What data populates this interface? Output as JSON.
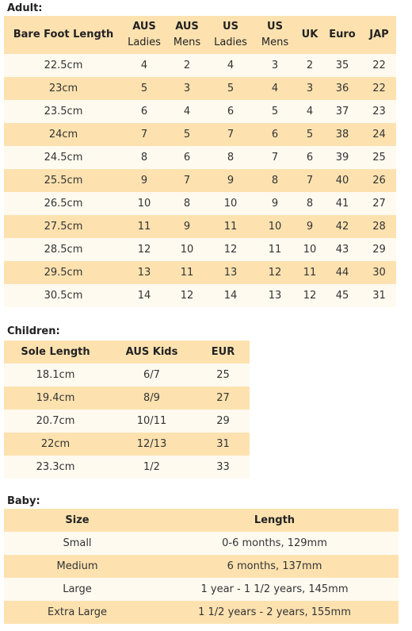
{
  "adult": {
    "title": "Adult:",
    "headers": [
      {
        "main": "Bare Foot Length",
        "sub": ""
      },
      {
        "main": "AUS",
        "sub": "Ladies"
      },
      {
        "main": "AUS",
        "sub": "Mens"
      },
      {
        "main": "US",
        "sub": "Ladies"
      },
      {
        "main": "US",
        "sub": "Mens"
      },
      {
        "main": "UK",
        "sub": ""
      },
      {
        "main": "Euro",
        "sub": ""
      },
      {
        "main": "JAP",
        "sub": ""
      }
    ],
    "rows": [
      [
        "22.5cm",
        "4",
        "2",
        "4",
        "3",
        "2",
        "35",
        "22"
      ],
      [
        "23cm",
        "5",
        "3",
        "5",
        "4",
        "3",
        "36",
        "22"
      ],
      [
        "23.5cm",
        "6",
        "4",
        "6",
        "5",
        "4",
        "37",
        "23"
      ],
      [
        "24cm",
        "7",
        "5",
        "7",
        "6",
        "5",
        "38",
        "24"
      ],
      [
        "24.5cm",
        "8",
        "6",
        "8",
        "7",
        "6",
        "39",
        "25"
      ],
      [
        "25.5cm",
        "9",
        "7",
        "9",
        "8",
        "7",
        "40",
        "26"
      ],
      [
        "26.5cm",
        "10",
        "8",
        "10",
        "9",
        "8",
        "41",
        "27"
      ],
      [
        "27.5cm",
        "11",
        "9",
        "11",
        "10",
        "9",
        "42",
        "28"
      ],
      [
        "28.5cm",
        "12",
        "10",
        "12",
        "11",
        "10",
        "43",
        "29"
      ],
      [
        "29.5cm",
        "13",
        "11",
        "13",
        "12",
        "11",
        "44",
        "30"
      ],
      [
        "30.5cm",
        "14",
        "12",
        "14",
        "13",
        "12",
        "45",
        "31"
      ]
    ]
  },
  "children": {
    "title": "Children:",
    "headers": [
      "Sole Length",
      "AUS Kids",
      "EUR"
    ],
    "rows": [
      [
        "18.1cm",
        "6/7",
        "25"
      ],
      [
        "19.4cm",
        "8/9",
        "27"
      ],
      [
        "20.7cm",
        "10/11",
        "29"
      ],
      [
        "22cm",
        "12/13",
        "31"
      ],
      [
        "23.3cm",
        "1/2",
        "33"
      ]
    ]
  },
  "baby": {
    "title": "Baby:",
    "headers": [
      "Size",
      "Length"
    ],
    "rows": [
      [
        "Small",
        "0-6 months, 129mm"
      ],
      [
        "Medium",
        "6 months, 137mm"
      ],
      [
        "Large",
        "1 year - 1 1/2 years, 145mm"
      ],
      [
        "Extra Large",
        "1 1/2 years - 2 years, 155mm"
      ]
    ]
  },
  "colors": {
    "header_bg": "#fde2b0",
    "odd_row_bg": "#fffaf0",
    "even_row_bg": "#fde2b0"
  }
}
